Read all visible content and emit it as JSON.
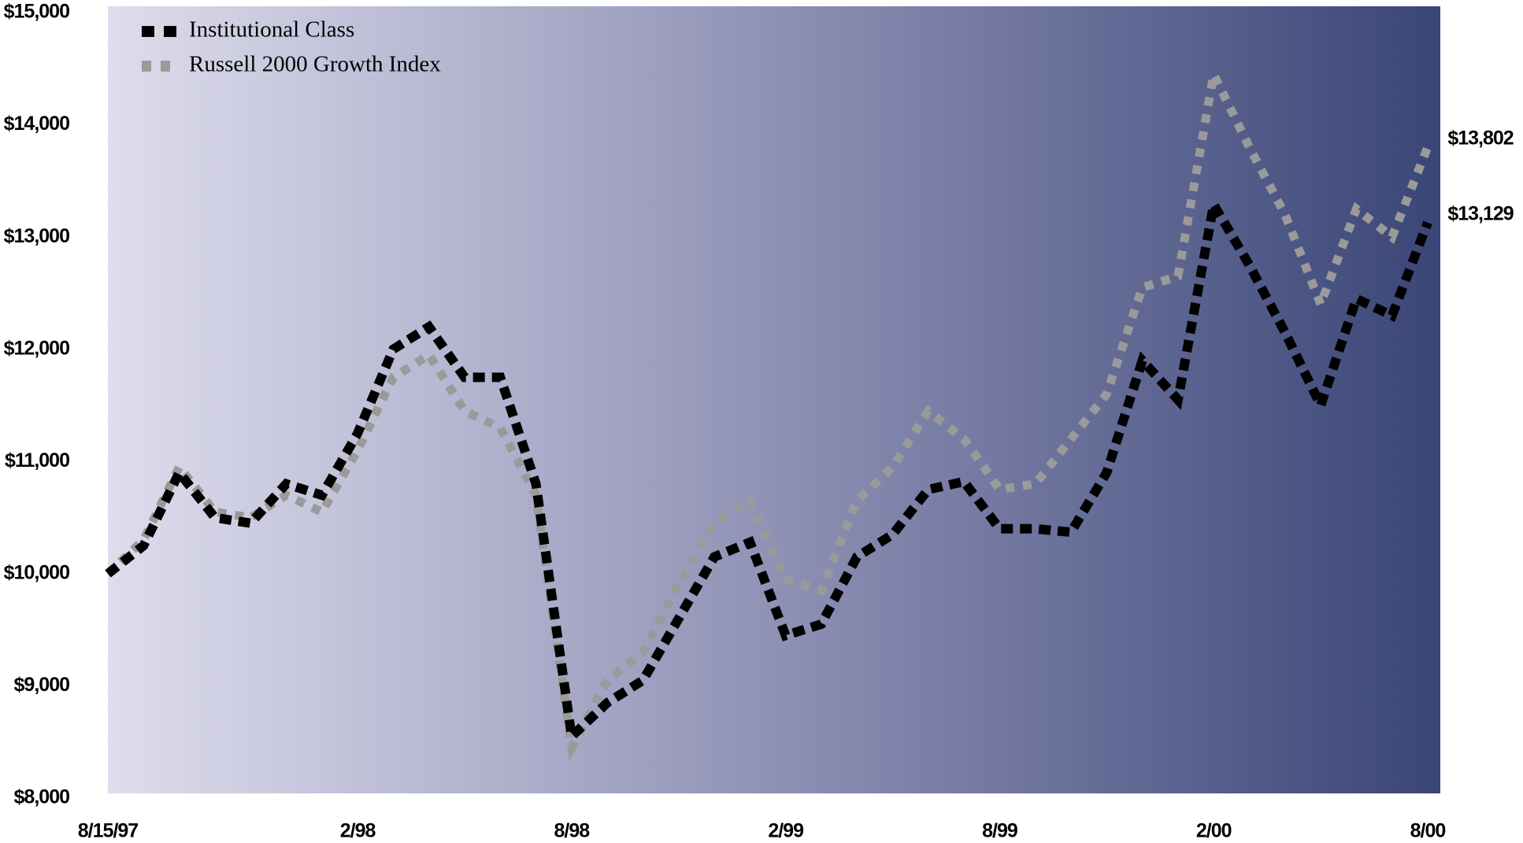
{
  "chart_data": {
    "type": "line",
    "categories": [
      "8/15/97",
      null,
      null,
      null,
      null,
      null,
      null,
      "2/98",
      null,
      null,
      null,
      null,
      null,
      "8/98",
      null,
      null,
      null,
      null,
      null,
      "2/99",
      null,
      null,
      null,
      null,
      null,
      "8/99",
      null,
      null,
      null,
      null,
      null,
      "2/00",
      null,
      null,
      null,
      null,
      null,
      "8/00"
    ],
    "series": [
      {
        "name": "Institutional Class",
        "color": "#000000",
        "values": [
          10000,
          10250,
          10900,
          10500,
          10450,
          10800,
          10700,
          11250,
          12000,
          12200,
          11750,
          11750,
          10800,
          8550,
          8850,
          9050,
          9600,
          10150,
          10280,
          9450,
          9550,
          10150,
          10350,
          10750,
          10820,
          10400,
          10400,
          10370,
          10900,
          11900,
          11550,
          13290,
          12750,
          12150,
          11500,
          12450,
          12300,
          13129
        ],
        "value_labels": [
          null,
          null,
          null,
          null,
          null,
          null,
          null,
          null,
          null,
          null,
          null,
          null,
          null,
          null,
          null,
          null,
          null,
          null,
          null,
          null,
          null,
          null,
          null,
          null,
          null,
          null,
          null,
          null,
          null,
          null,
          null,
          null,
          null,
          null,
          null,
          null,
          null,
          "$13,129"
        ]
      },
      {
        "name": "Russell 2000  Growth Index",
        "color": "#9a9a9a",
        "values": [
          10000,
          10300,
          10950,
          10550,
          10500,
          10700,
          10550,
          11100,
          11750,
          11950,
          11450,
          11300,
          10700,
          8450,
          9050,
          9300,
          9900,
          10450,
          10650,
          9950,
          9850,
          10650,
          10950,
          11450,
          11200,
          10750,
          10800,
          11200,
          11600,
          12550,
          12650,
          14450,
          13800,
          13200,
          12400,
          13250,
          13000,
          13802
        ],
        "value_labels": [
          null,
          null,
          null,
          null,
          null,
          null,
          null,
          null,
          null,
          null,
          null,
          null,
          null,
          null,
          null,
          null,
          null,
          null,
          null,
          null,
          null,
          null,
          null,
          null,
          null,
          null,
          null,
          null,
          null,
          null,
          null,
          null,
          null,
          null,
          null,
          null,
          null,
          "$13,802"
        ]
      }
    ],
    "ylim": [
      8000,
      15000
    ],
    "yticks": [
      {
        "value": 8000,
        "label": "$8,000"
      },
      {
        "value": 9000,
        "label": "$9,000"
      },
      {
        "value": 10000,
        "label": "$10,000"
      },
      {
        "value": 11000,
        "label": "$11,000"
      },
      {
        "value": 12000,
        "label": "$12,000"
      },
      {
        "value": 13000,
        "label": "$13,000"
      },
      {
        "value": 14000,
        "label": "$14,000"
      },
      {
        "value": 15000,
        "label": "$15,000"
      }
    ],
    "legend": "top-left",
    "grid": false
  }
}
